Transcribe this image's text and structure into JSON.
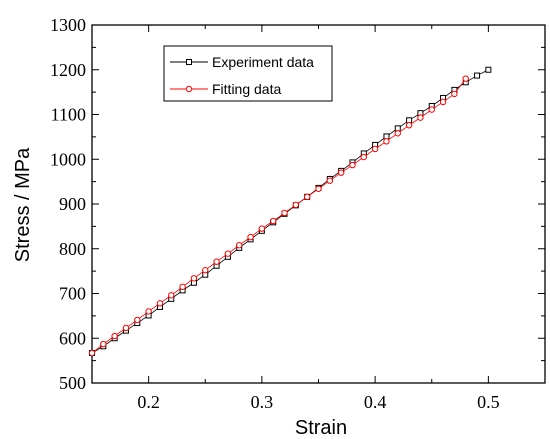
{
  "chart_data": {
    "type": "scatter",
    "xlabel": "Strain",
    "ylabel": "Stress / MPa",
    "xlim": [
      0.15,
      0.55
    ],
    "ylim": [
      500,
      1300
    ],
    "x_ticks": [
      "0.2",
      "0.3",
      "0.4",
      "0.5"
    ],
    "y_ticks": [
      "500",
      "600",
      "700",
      "800",
      "900",
      "1000",
      "1100",
      "1200",
      "1300"
    ],
    "grid": false,
    "legend_position": "top-left",
    "series": [
      {
        "name": "Experiment data",
        "color": "#000000",
        "marker": "square",
        "x": [
          0.15,
          0.16,
          0.17,
          0.18,
          0.19,
          0.2,
          0.21,
          0.22,
          0.23,
          0.24,
          0.25,
          0.26,
          0.27,
          0.28,
          0.29,
          0.3,
          0.31,
          0.32,
          0.33,
          0.34,
          0.35,
          0.36,
          0.37,
          0.38,
          0.39,
          0.4,
          0.41,
          0.42,
          0.43,
          0.44,
          0.45,
          0.46,
          0.47,
          0.48,
          0.49,
          0.5
        ],
        "y": [
          567,
          582,
          600,
          617,
          634,
          651,
          670,
          688,
          707,
          724,
          742,
          762,
          782,
          802,
          821,
          840,
          859,
          878,
          897,
          916,
          936,
          956,
          974,
          993,
          1013,
          1032,
          1051,
          1069,
          1087,
          1103,
          1119,
          1137,
          1155,
          1172,
          1187,
          1200
        ]
      },
      {
        "name": "Fitting data",
        "color": "#ff0000",
        "marker": "circle",
        "x": [
          0.15,
          0.16,
          0.17,
          0.18,
          0.19,
          0.2,
          0.21,
          0.22,
          0.23,
          0.24,
          0.25,
          0.26,
          0.27,
          0.28,
          0.29,
          0.3,
          0.31,
          0.32,
          0.33,
          0.34,
          0.35,
          0.36,
          0.37,
          0.38,
          0.39,
          0.4,
          0.41,
          0.42,
          0.43,
          0.44,
          0.45,
          0.46,
          0.47,
          0.48
        ],
        "y": [
          567,
          587,
          605,
          623,
          641,
          660,
          678,
          696,
          715,
          734,
          752,
          771,
          789,
          808,
          826,
          845,
          862,
          880,
          898,
          916,
          934,
          952,
          970,
          987,
          1005,
          1023,
          1040,
          1058,
          1076,
          1093,
          1111,
          1128,
          1146,
          1180
        ]
      }
    ]
  }
}
